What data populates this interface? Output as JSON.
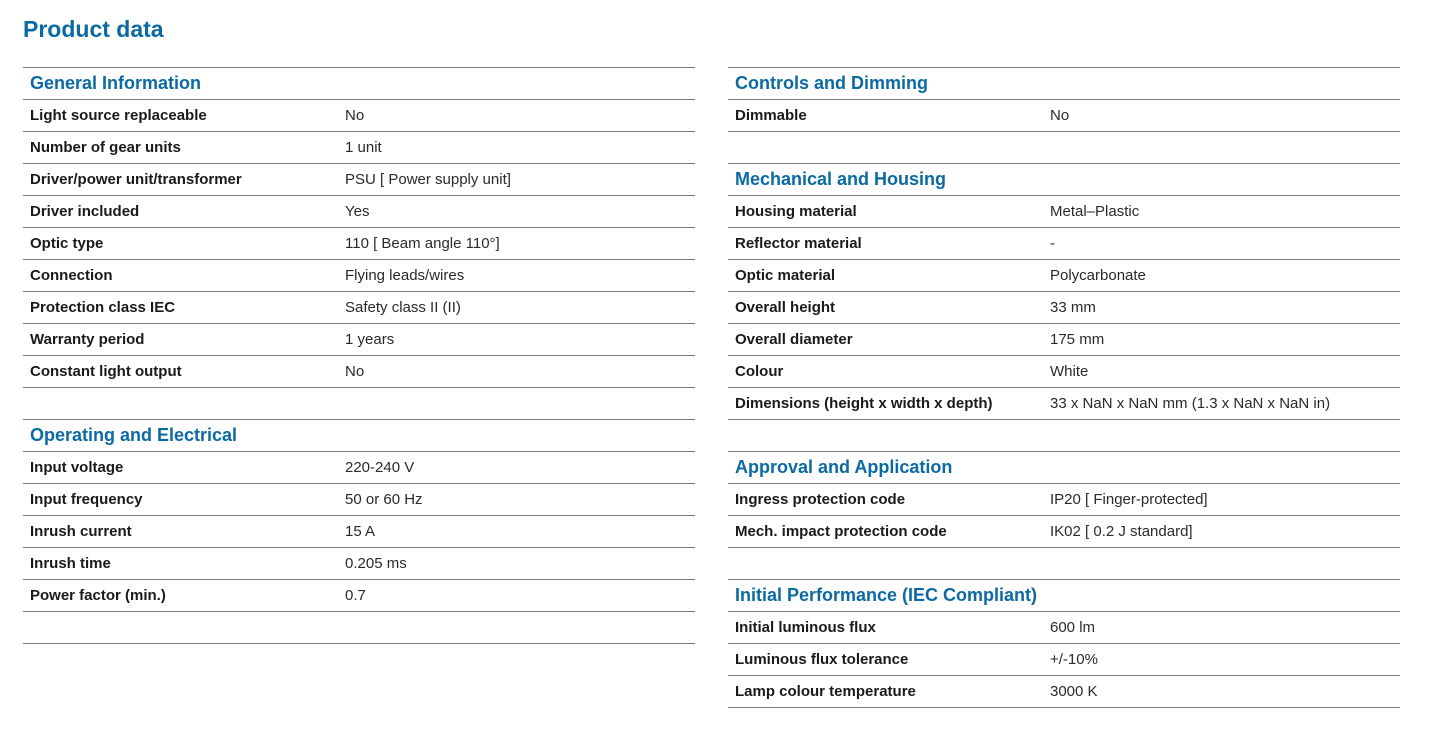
{
  "title": "Product data",
  "left": {
    "general": {
      "heading": "General Information",
      "rows": [
        {
          "label": "Light source replaceable",
          "value": "No"
        },
        {
          "label": "Number of gear units",
          "value": "1 unit"
        },
        {
          "label": "Driver/power unit/transformer",
          "value": "PSU [ Power supply unit]"
        },
        {
          "label": "Driver included",
          "value": "Yes"
        },
        {
          "label": "Optic type",
          "value": "110 [ Beam angle 110°]"
        },
        {
          "label": "Connection",
          "value": "Flying leads/wires"
        },
        {
          "label": "Protection class IEC",
          "value": "Safety class II (II)"
        },
        {
          "label": "Warranty period",
          "value": "1 years"
        },
        {
          "label": "Constant light output",
          "value": "No"
        }
      ]
    },
    "electrical": {
      "heading": "Operating and Electrical",
      "rows": [
        {
          "label": "Input voltage",
          "value": "220-240 V"
        },
        {
          "label": "Input frequency",
          "value": "50 or 60 Hz"
        },
        {
          "label": "Inrush current",
          "value": "15 A"
        },
        {
          "label": "Inrush time",
          "value": "0.205 ms"
        },
        {
          "label": "Power factor (min.)",
          "value": "0.7"
        }
      ]
    }
  },
  "right": {
    "controls": {
      "heading": "Controls and Dimming",
      "rows": [
        {
          "label": "Dimmable",
          "value": "No"
        }
      ]
    },
    "mechanical": {
      "heading": "Mechanical and Housing",
      "rows": [
        {
          "label": "Housing material",
          "value": "Metal–Plastic"
        },
        {
          "label": "Reflector material",
          "value": "-"
        },
        {
          "label": "Optic material",
          "value": "Polycarbonate"
        },
        {
          "label": "Overall height",
          "value": "33 mm"
        },
        {
          "label": "Overall diameter",
          "value": "175 mm"
        },
        {
          "label": "Colour",
          "value": "White"
        },
        {
          "label": "Dimensions (height x width x depth)",
          "value": "33 x NaN x NaN mm (1.3 x NaN x NaN in)"
        }
      ]
    },
    "approval": {
      "heading": "Approval and Application",
      "rows": [
        {
          "label": "Ingress protection code",
          "value": "IP20 [ Finger-protected]"
        },
        {
          "label": "Mech. impact protection code",
          "value": "IK02 [ 0.2 J standard]"
        }
      ]
    },
    "performance": {
      "heading": "Initial Performance (IEC Compliant)",
      "rows": [
        {
          "label": "Initial luminous flux",
          "value": "600 lm"
        },
        {
          "label": "Luminous flux tolerance",
          "value": "+/-10%"
        },
        {
          "label": "Lamp colour temperature",
          "value": "3000 K"
        }
      ]
    }
  },
  "colors": {
    "accent": "#0b6aa2",
    "rule": "#7a7a7a",
    "text": "#1a1a1a"
  }
}
